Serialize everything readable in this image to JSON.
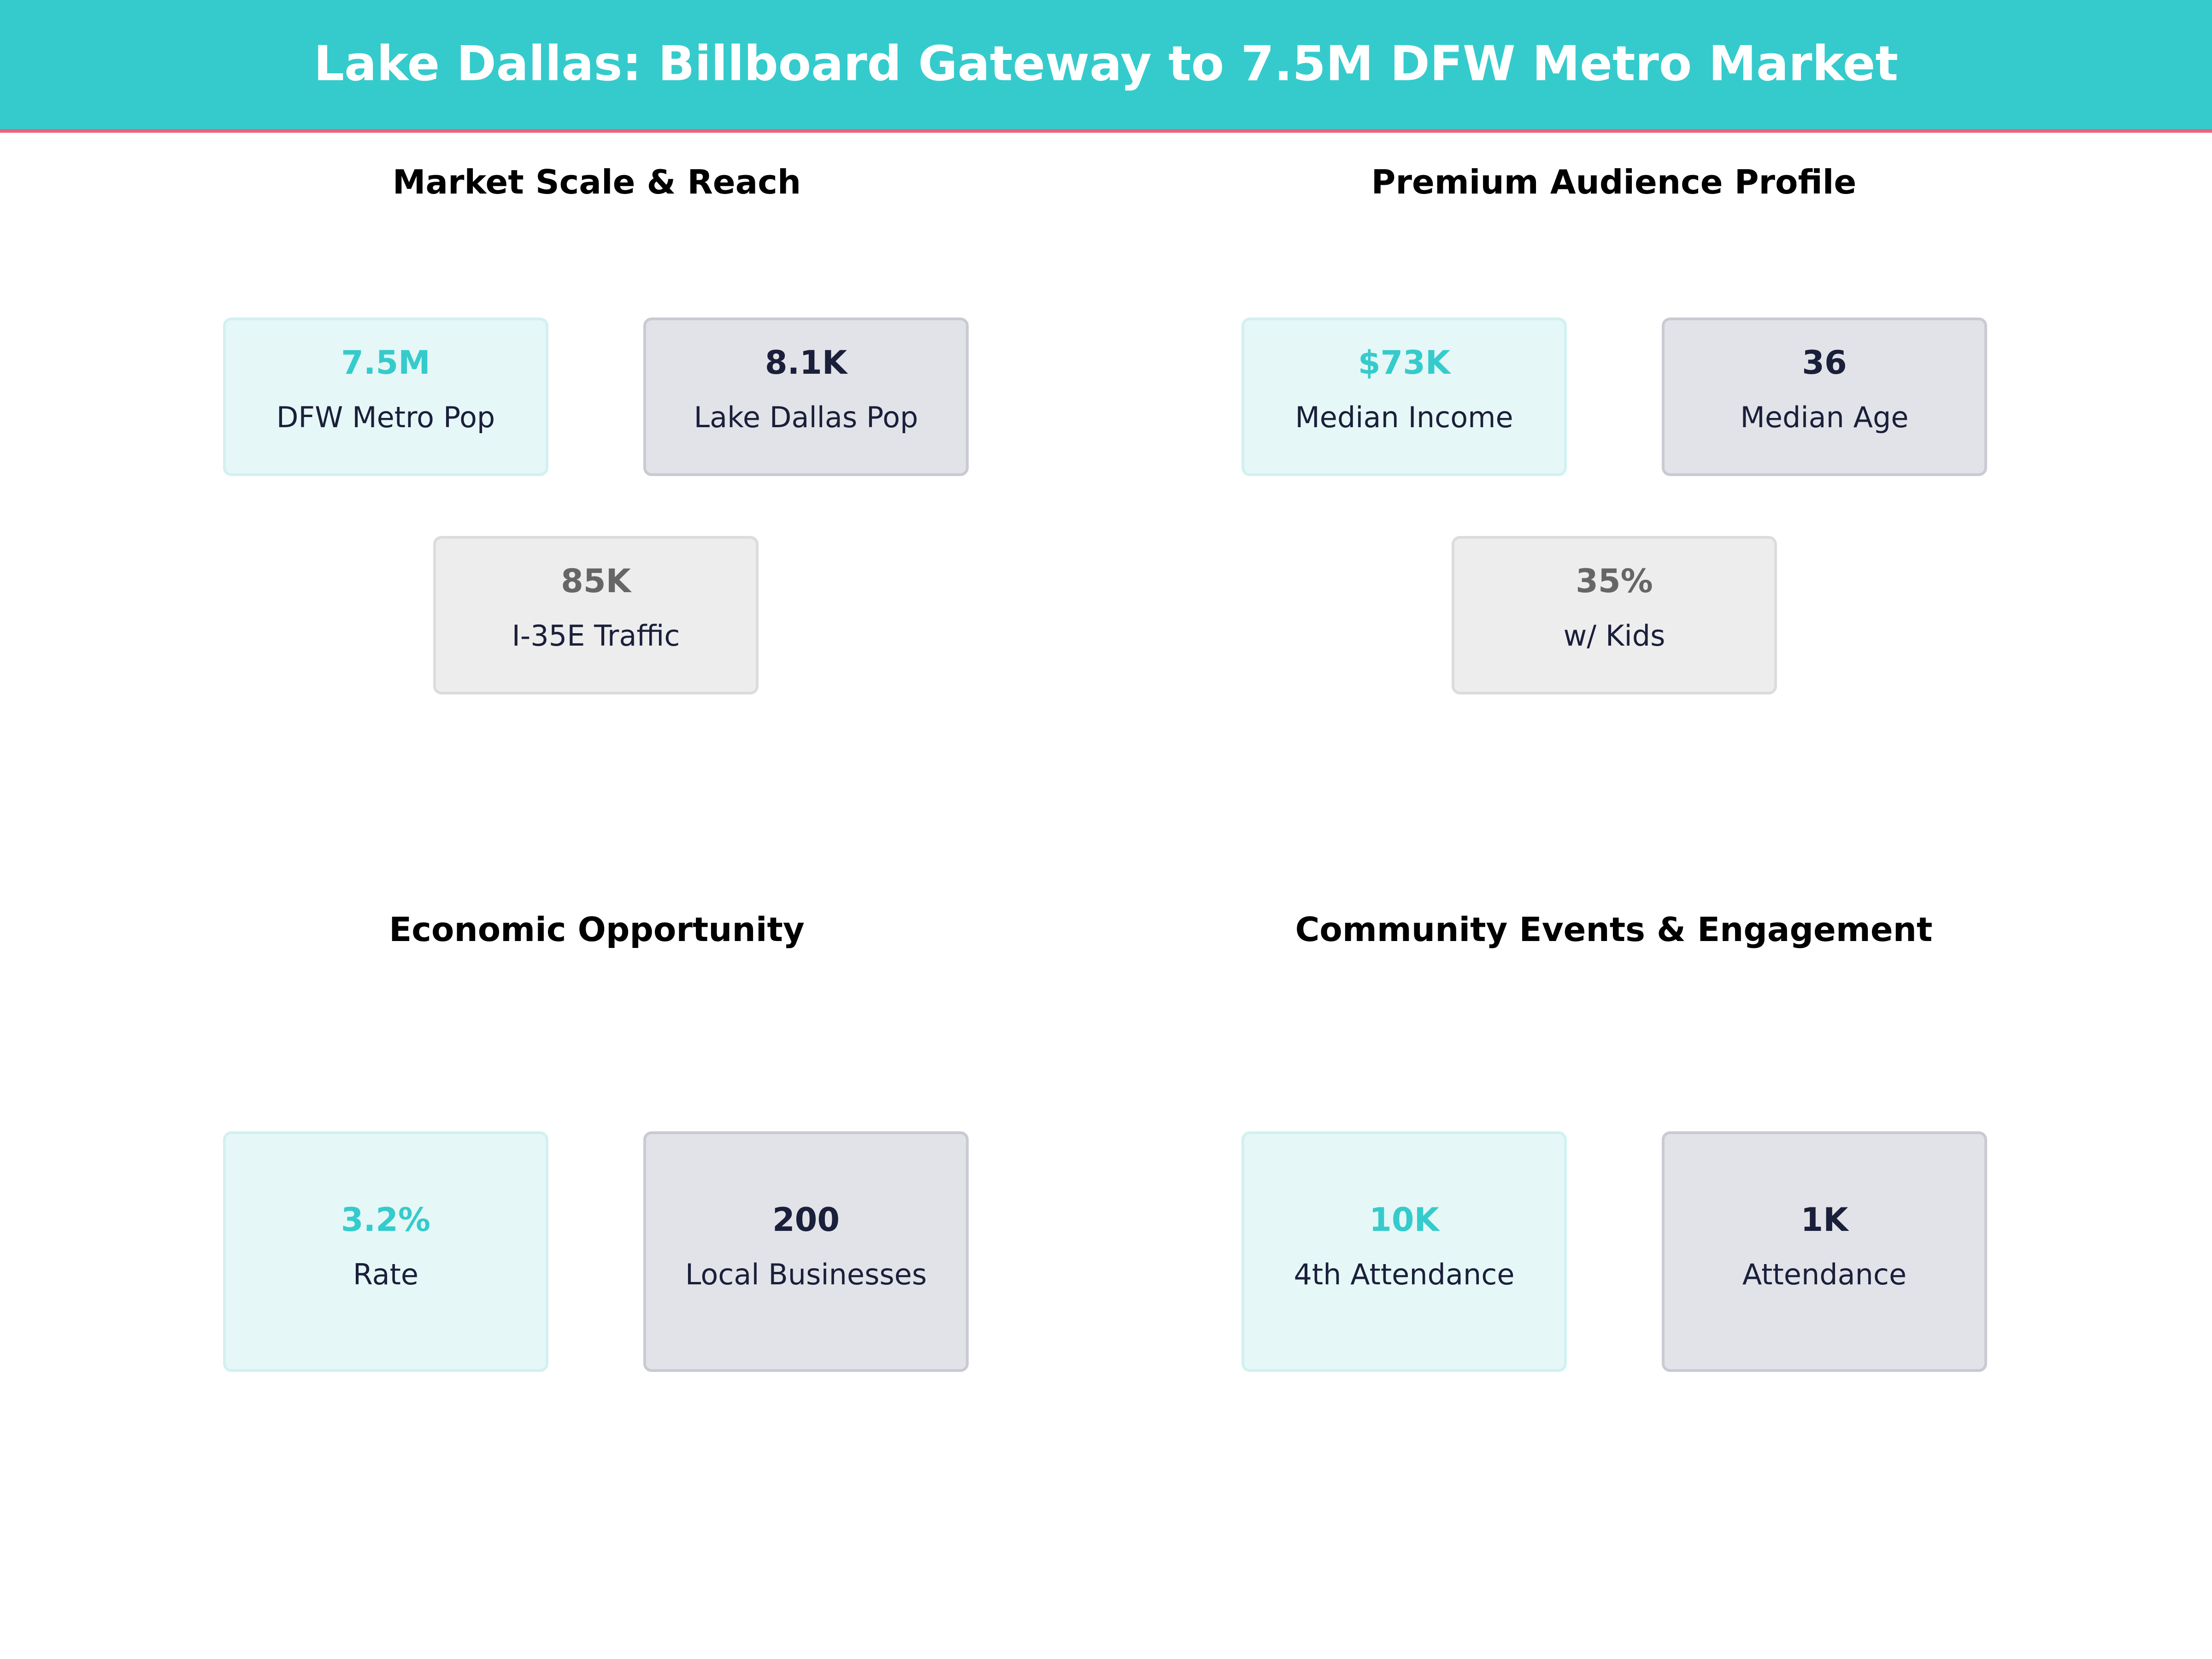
{
  "header": {
    "title": "Lake Dallas: Billboard Gateway to 7.5M DFW Metro Market"
  },
  "colors": {
    "accent": "#35cbcc",
    "header_rule": "#e8647a",
    "navy": "#1a1f3a",
    "gray": "#666666"
  },
  "sections": [
    {
      "title": "Market Scale & Reach",
      "cards": [
        {
          "value": "7.5M",
          "label": "DFW Metro Pop"
        },
        {
          "value": "8.1K",
          "label": "Lake Dallas Pop"
        },
        {
          "value": "85K",
          "label": "I-35E Traffic"
        }
      ]
    },
    {
      "title": "Premium Audience Profile",
      "cards": [
        {
          "value": "$73K",
          "label": "Median Income"
        },
        {
          "value": "36",
          "label": "Median Age"
        },
        {
          "value": "35%",
          "label": "w/ Kids"
        }
      ]
    },
    {
      "title": "Economic Opportunity",
      "cards": [
        {
          "value": "3.2%",
          "label": "Rate"
        },
        {
          "value": "200",
          "label": "Local Businesses"
        }
      ]
    },
    {
      "title": "Community Events & Engagement",
      "cards": [
        {
          "value": "10K",
          "label": "4th Attendance"
        },
        {
          "value": "1K",
          "label": "Attendance"
        }
      ]
    }
  ]
}
